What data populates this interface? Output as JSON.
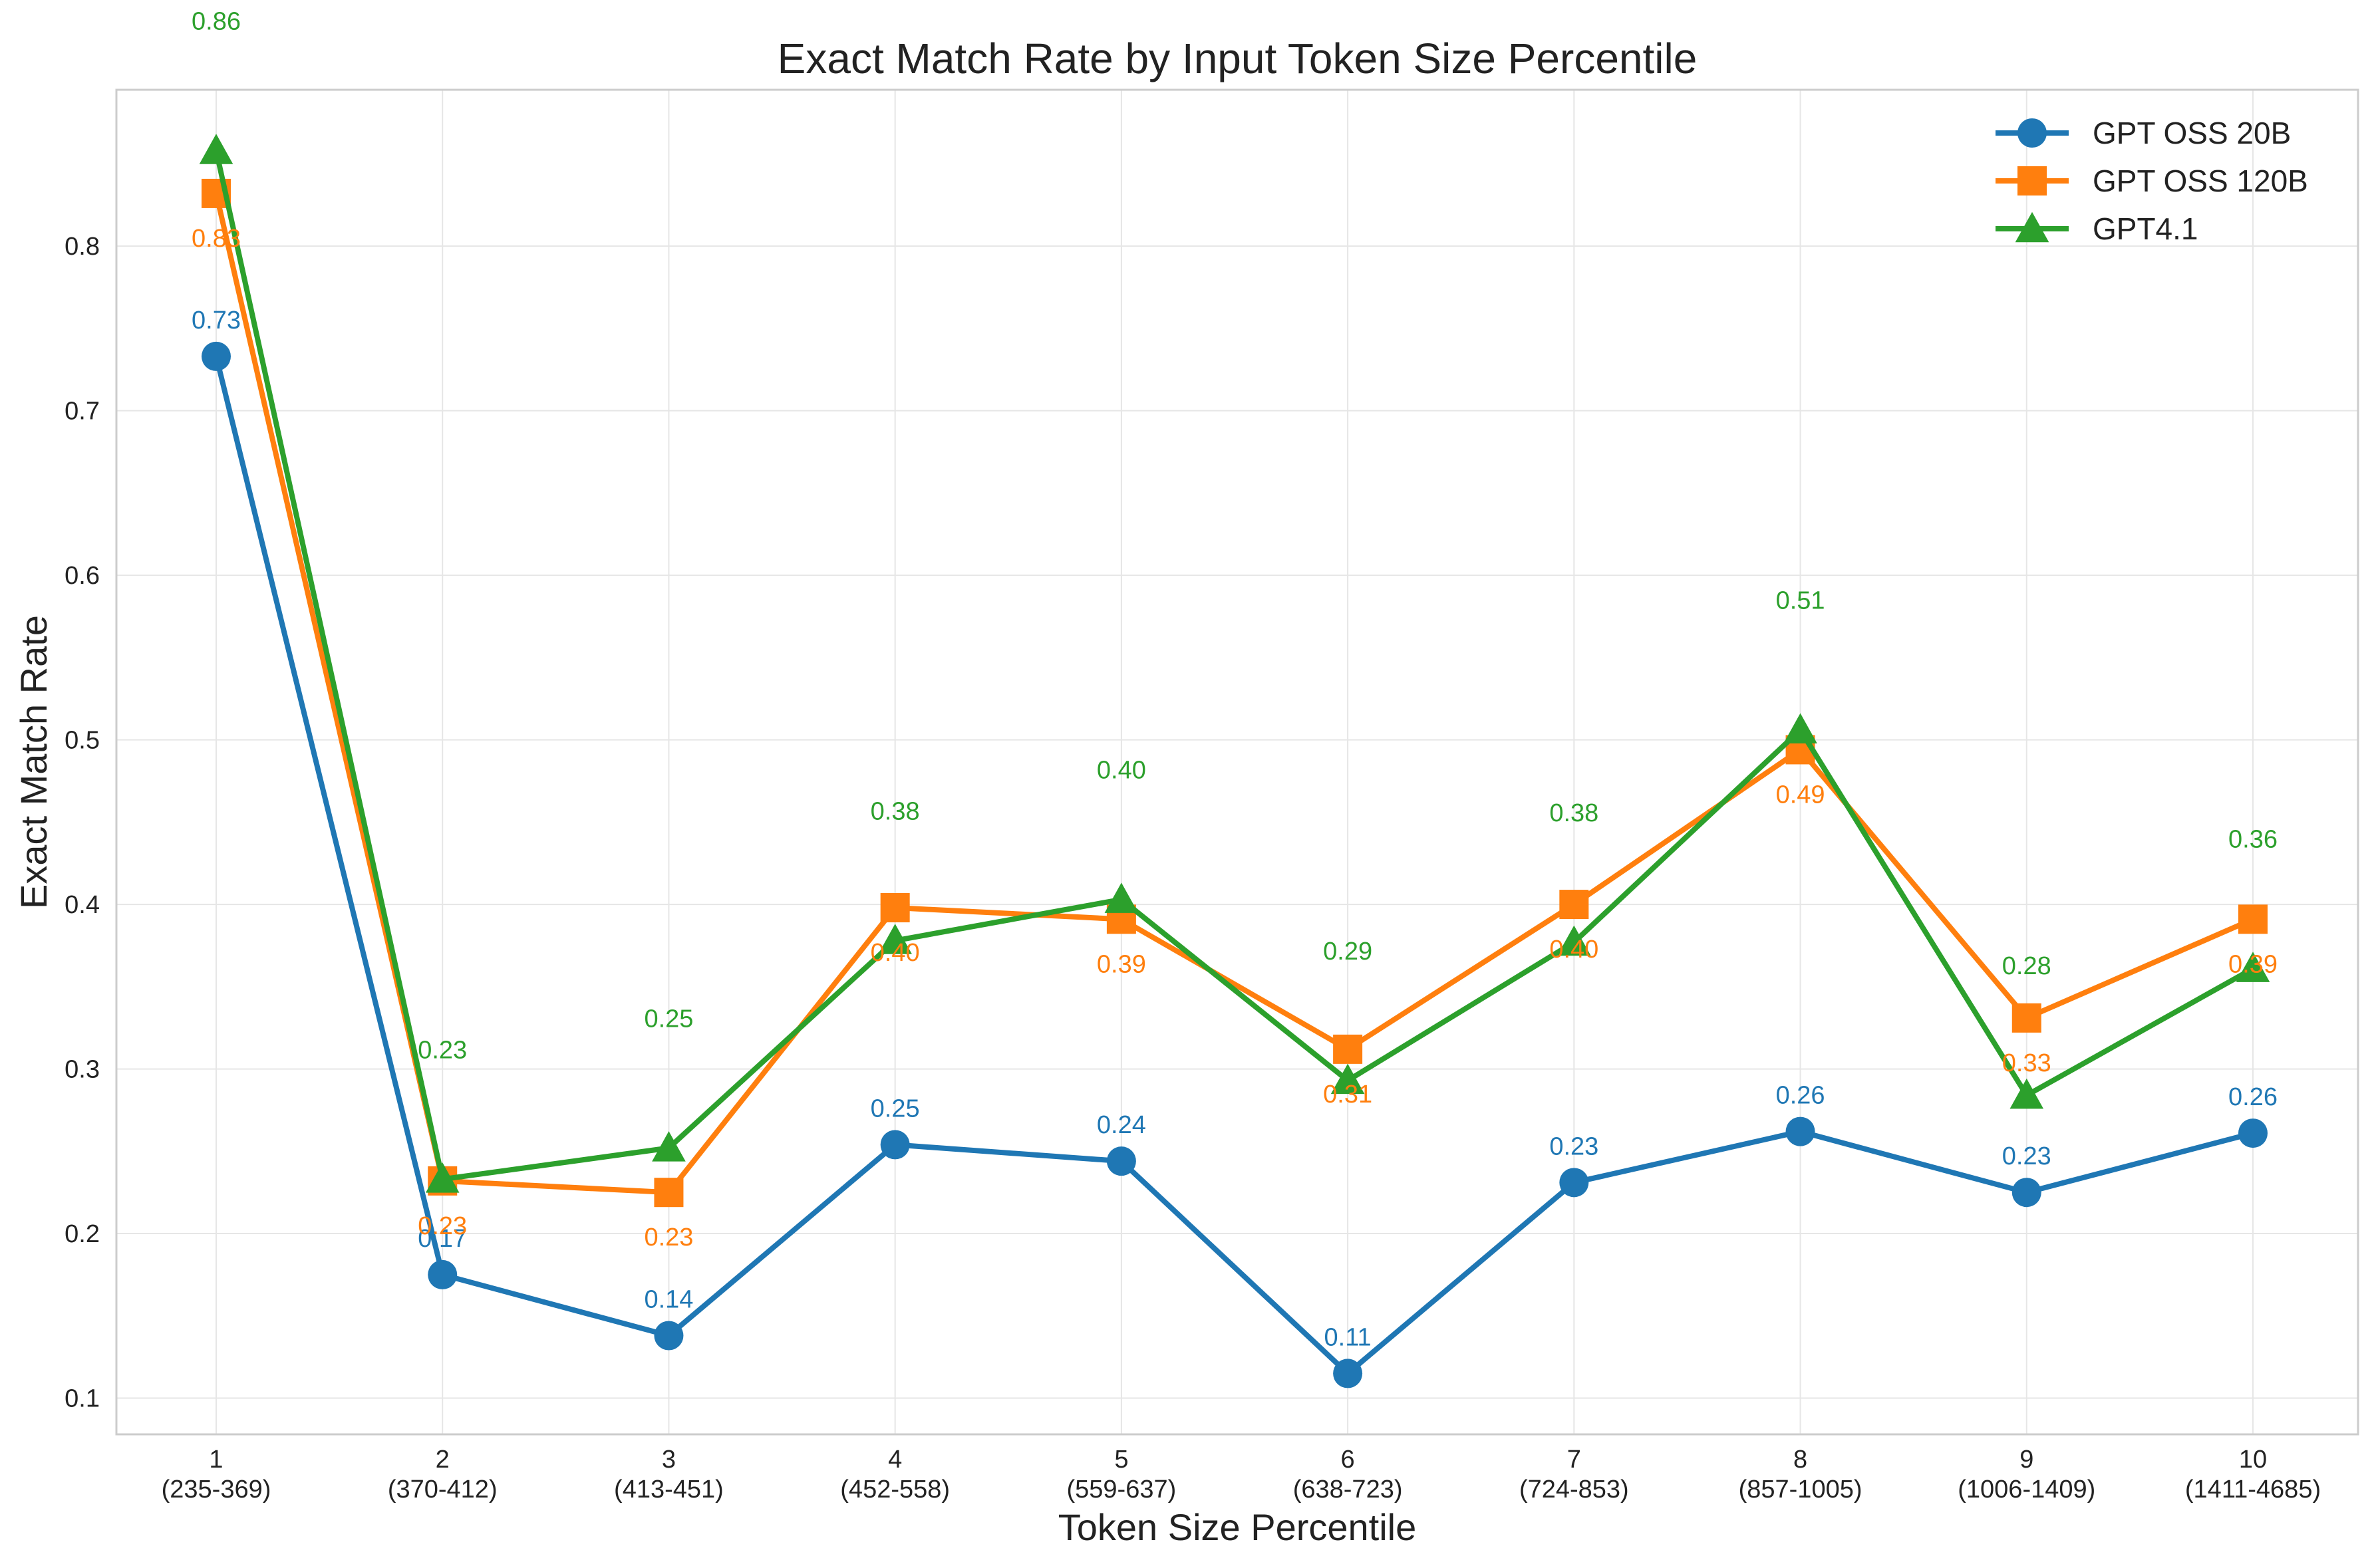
{
  "chart_data": {
    "type": "line",
    "title": "Exact Match Rate by Input Token Size Percentile",
    "xlabel": "Token Size Percentile",
    "ylabel": "Exact Match Rate",
    "categories": [
      "1",
      "2",
      "3",
      "4",
      "5",
      "6",
      "7",
      "8",
      "9",
      "10"
    ],
    "category_ranges": [
      "(235-369)",
      "(370-412)",
      "(413-451)",
      "(452-558)",
      "(559-637)",
      "(638-723)",
      "(724-853)",
      "(857-1005)",
      "(1006-1409)",
      "(1411-4685)"
    ],
    "yticks": [
      "0.1",
      "0.2",
      "0.3",
      "0.4",
      "0.5",
      "0.6",
      "0.7",
      "0.8"
    ],
    "ylim": [
      0.078,
      0.895
    ],
    "grid": true,
    "legend_position": "top-right",
    "series": [
      {
        "name": "GPT OSS 20B",
        "color": "#1f77b4",
        "marker": "circle",
        "values": [
          0.733,
          0.175,
          0.138,
          0.254,
          0.244,
          0.115,
          0.231,
          0.262,
          0.225,
          0.261
        ],
        "labels": [
          "0.73",
          "0.17",
          "0.14",
          "0.25",
          "0.24",
          "0.11",
          "0.23",
          "0.26",
          "0.23",
          "0.26"
        ],
        "label_position": "above"
      },
      {
        "name": "GPT OSS 120B",
        "color": "#ff7f0e",
        "marker": "square",
        "values": [
          0.832,
          0.232,
          0.225,
          0.398,
          0.391,
          0.312,
          0.4,
          0.494,
          0.331,
          0.391
        ],
        "labels": [
          "0.83",
          "0.23",
          "0.23",
          "0.40",
          "0.39",
          "0.31",
          "0.40",
          "0.49",
          "0.33",
          "0.39"
        ],
        "label_position": "below"
      },
      {
        "name": "GPT4.1",
        "color": "#2ca02c",
        "marker": "triangle",
        "values": [
          0.858,
          0.233,
          0.252,
          0.378,
          0.403,
          0.293,
          0.377,
          0.506,
          0.284,
          0.361
        ],
        "labels": [
          "0.86",
          "0.23",
          "0.25",
          "0.38",
          "0.40",
          "0.29",
          "0.38",
          "0.51",
          "0.28",
          "0.36"
        ],
        "label_position": "above"
      }
    ]
  }
}
